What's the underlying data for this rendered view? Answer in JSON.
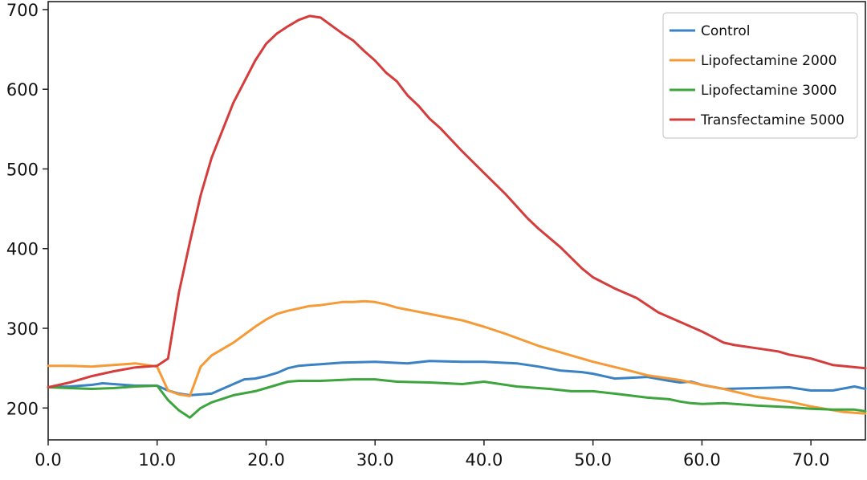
{
  "chart_data": {
    "type": "line",
    "title": "",
    "xlabel": "",
    "ylabel": "",
    "xlim": [
      0,
      75
    ],
    "ylim": [
      160,
      710
    ],
    "xticks": [
      0,
      10,
      20,
      30,
      40,
      50,
      60,
      70
    ],
    "xtick_labels": [
      "0.0",
      "10.0",
      "20.0",
      "30.0",
      "40.0",
      "50.0",
      "60.0",
      "70.0"
    ],
    "yticks": [
      200,
      300,
      400,
      500,
      600,
      700
    ],
    "ytick_labels": [
      "200",
      "300",
      "400",
      "500",
      "600",
      "700"
    ],
    "grid": false,
    "legend_position": "top-right",
    "series": [
      {
        "name": "Control",
        "color": "#3b82c4",
        "x": [
          0,
          2,
          4,
          5,
          6,
          8,
          10,
          11,
          12,
          13,
          15,
          17,
          18,
          19,
          20,
          21,
          22,
          23,
          25,
          27,
          30,
          33,
          35,
          38,
          40,
          43,
          45,
          47,
          49,
          50,
          52,
          55,
          57,
          58,
          59,
          60,
          62,
          65,
          68,
          70,
          72,
          74,
          75
        ],
        "y": [
          226,
          227,
          229,
          231,
          230,
          228,
          228,
          222,
          218,
          216,
          218,
          230,
          236,
          237,
          240,
          244,
          250,
          253,
          255,
          257,
          258,
          256,
          259,
          258,
          258,
          256,
          252,
          247,
          245,
          243,
          237,
          239,
          234,
          232,
          233,
          229,
          224,
          225,
          226,
          222,
          222,
          227,
          224
        ]
      },
      {
        "name": "Lipofectamine 2000",
        "color": "#f59a36",
        "x": [
          0,
          2,
          4,
          6,
          8,
          10,
          11,
          12,
          13,
          14,
          15,
          17,
          19,
          20,
          21,
          22,
          23,
          24,
          25,
          26,
          27,
          28,
          29,
          30,
          31,
          32,
          35,
          38,
          40,
          42,
          45,
          48,
          50,
          53,
          55,
          58,
          60,
          62,
          65,
          68,
          70,
          73,
          75
        ],
        "y": [
          253,
          253,
          252,
          254,
          256,
          252,
          222,
          217,
          215,
          252,
          266,
          282,
          302,
          311,
          318,
          322,
          325,
          328,
          329,
          331,
          333,
          333,
          334,
          333,
          330,
          326,
          318,
          310,
          302,
          293,
          278,
          266,
          258,
          248,
          241,
          235,
          229,
          224,
          214,
          208,
          202,
          195,
          193
        ]
      },
      {
        "name": "Lipofectamine 3000",
        "color": "#3ea43d",
        "x": [
          0,
          2,
          4,
          6,
          8,
          10,
          11,
          12,
          13,
          14,
          15,
          17,
          19,
          20,
          21,
          22,
          23,
          25,
          28,
          30,
          32,
          35,
          38,
          40,
          43,
          46,
          48,
          50,
          52,
          55,
          57,
          58,
          59,
          60,
          62,
          65,
          68,
          70,
          72,
          74,
          75
        ],
        "y": [
          226,
          225,
          224,
          225,
          227,
          228,
          210,
          197,
          188,
          200,
          207,
          216,
          221,
          225,
          229,
          233,
          234,
          234,
          236,
          236,
          233,
          232,
          230,
          233,
          227,
          224,
          221,
          221,
          218,
          213,
          211,
          208,
          206,
          205,
          206,
          203,
          201,
          199,
          198,
          198,
          196
        ]
      },
      {
        "name": "Transfectamine 5000",
        "color": "#d53c3c",
        "x": [
          0,
          1,
          2,
          3,
          4,
          6,
          8,
          10,
          11,
          12,
          13,
          14,
          15,
          17,
          19,
          20,
          21,
          22,
          23,
          24,
          25,
          26,
          27,
          28,
          29,
          30,
          31,
          32,
          33,
          34,
          35,
          36,
          38,
          40,
          42,
          44,
          45,
          47,
          49,
          50,
          52,
          54,
          56,
          58,
          60,
          62,
          63,
          65,
          67,
          68,
          70,
          72,
          75
        ],
        "y": [
          226,
          229,
          232,
          236,
          240,
          246,
          251,
          253,
          262,
          345,
          408,
          467,
          514,
          583,
          636,
          657,
          670,
          679,
          687,
          692,
          690,
          680,
          670,
          661,
          648,
          636,
          621,
          610,
          592,
          579,
          563,
          551,
          522,
          495,
          468,
          438,
          425,
          402,
          375,
          364,
          350,
          338,
          320,
          308,
          296,
          282,
          279,
          275,
          271,
          267,
          262,
          254,
          250
        ]
      }
    ]
  }
}
